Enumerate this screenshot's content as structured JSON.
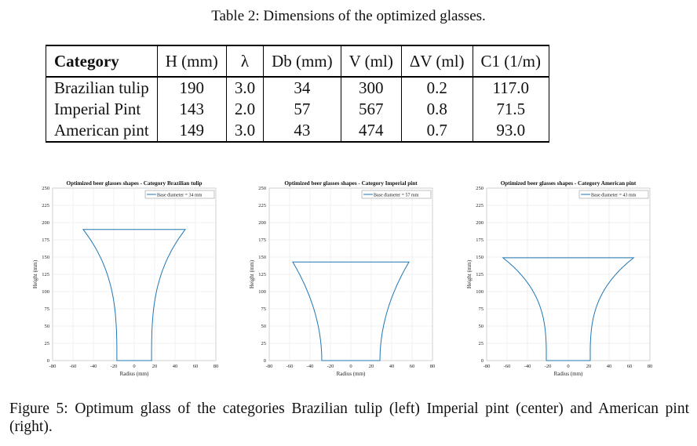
{
  "table": {
    "caption": "Table 2: Dimensions of the optimized glasses.",
    "headers": [
      "Category",
      "H (mm)",
      "λ",
      "Db (mm)",
      "V (ml)",
      "ΔV (ml)",
      "C1 (1/m)"
    ],
    "rows": [
      [
        "Brazilian tulip",
        "190",
        "3.0",
        "34",
        "300",
        "0.2",
        "117.0"
      ],
      [
        "Imperial Pint",
        "143",
        "2.0",
        "57",
        "567",
        "0.8",
        "71.5"
      ],
      [
        "American pint",
        "149",
        "3.0",
        "43",
        "474",
        "0.7",
        "93.0"
      ]
    ]
  },
  "figure_caption": "Figure 5: Optimum glass of the categories Brazilian tulip (left) Imperial pint (center) and American pint (right).",
  "chart_data": [
    {
      "type": "line",
      "title": "Optimized beer glasses shapes - Category Brazilian tulip",
      "xlabel": "Radius (mm)",
      "ylabel": "Height (mm)",
      "xlim": [
        -80,
        80
      ],
      "ylim": [
        0,
        250
      ],
      "xticks": [
        "-80",
        "-60",
        "-40",
        "-20",
        "0",
        "20",
        "40",
        "60",
        "80"
      ],
      "yticks": [
        "0",
        "25",
        "50",
        "75",
        "100",
        "125",
        "150",
        "175",
        "200",
        "225",
        "250"
      ],
      "legend": "Base diameter = 34 mm",
      "legend_position": "top-right",
      "grid": true,
      "series": [
        {
          "name": "Base diameter = 34 mm",
          "base_radius": 17,
          "top_radius": 50,
          "height": 190,
          "flare": 3.0
        }
      ]
    },
    {
      "type": "line",
      "title": "Optimized beer glasses shapes - Category Imperial pint",
      "xlabel": "Radius (mm)",
      "ylabel": "Height (mm)",
      "xlim": [
        -80,
        80
      ],
      "ylim": [
        0,
        250
      ],
      "xticks": [
        "-80",
        "-60",
        "-40",
        "-20",
        "0",
        "20",
        "40",
        "60",
        "80"
      ],
      "yticks": [
        "0",
        "25",
        "50",
        "75",
        "100",
        "125",
        "150",
        "175",
        "200",
        "225",
        "250"
      ],
      "legend": "Base diameter = 57 mm",
      "legend_position": "top-right",
      "grid": true,
      "series": [
        {
          "name": "Base diameter = 57 mm",
          "base_radius": 28.5,
          "top_radius": 57,
          "height": 143,
          "flare": 2.0
        }
      ]
    },
    {
      "type": "line",
      "title": "Optimized beer glasses shapes - Category American pint",
      "xlabel": "Radius (mm)",
      "ylabel": "Height (mm)",
      "xlim": [
        -80,
        80
      ],
      "ylim": [
        0,
        250
      ],
      "xticks": [
        "-80",
        "-60",
        "-40",
        "-20",
        "0",
        "20",
        "40",
        "60",
        "80"
      ],
      "yticks": [
        "0",
        "25",
        "50",
        "75",
        "100",
        "125",
        "150",
        "175",
        "200",
        "225",
        "250"
      ],
      "legend": "Base diameter = 43 mm",
      "legend_position": "top-right",
      "grid": true,
      "series": [
        {
          "name": "Base diameter = 43 mm",
          "base_radius": 21.5,
          "top_radius": 64,
          "height": 149,
          "flare": 3.0
        }
      ]
    }
  ]
}
